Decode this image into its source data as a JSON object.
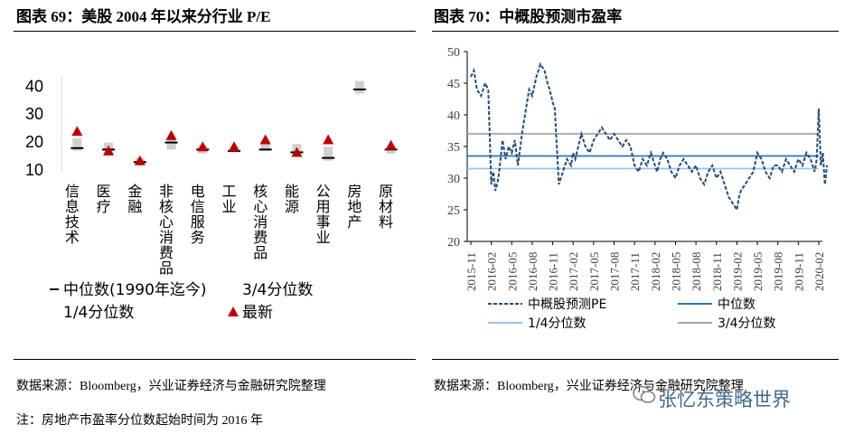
{
  "left_title": "图表 69：美股 2004 年以来分行业 P/E",
  "right_title": "图表 70：中概股预测市盈率",
  "source_left": "数据来源：Bloomberg，兴业证券经济与金融研究院整理",
  "source_right": "数据来源：Bloomberg，兴业证券经济与金融研究院整理",
  "note": "注：房地产市盈率分位数起始时间为 2016 年",
  "watermark": "张忆东策略世界",
  "watermark_icon": "wechat-icon",
  "chart_data": [
    {
      "type": "box",
      "title": "美股 2004 年以来分行业 P/E",
      "yticks": [
        10,
        20,
        30,
        40
      ],
      "ylim": [
        10,
        43
      ],
      "categories": [
        "信息技术",
        "医疗",
        "金融",
        "非核心消费品",
        "电信服务",
        "工业",
        "核心消费品",
        "能源",
        "公用事业",
        "房地产",
        "原材料"
      ],
      "q1": [
        16.5,
        15.5,
        12.0,
        17.0,
        15.5,
        16.0,
        16.5,
        14.5,
        13.0,
        37.0,
        15.5
      ],
      "q3": [
        21.0,
        19.5,
        14.0,
        21.0,
        18.5,
        18.0,
        20.0,
        19.0,
        18.0,
        41.5,
        18.5
      ],
      "median": [
        17.5,
        17.0,
        12.5,
        19.5,
        17.0,
        16.5,
        17.0,
        16.0,
        14.0,
        38.5,
        17.0
      ],
      "latest": [
        23.5,
        16.5,
        13.0,
        22.0,
        18.0,
        18.0,
        20.5,
        16.0,
        20.5,
        null,
        18.5
      ],
      "legend": [
        "中位数(1990年迄今)",
        "3/4分位数",
        "1/4分位数",
        "最新"
      ],
      "colors": {
        "box": "#d0d0d0",
        "median": "#000000",
        "latest": "#c00000"
      }
    },
    {
      "type": "line",
      "title": "中概股预测市盈率",
      "ylim": [
        20,
        50
      ],
      "yticks": [
        20,
        25,
        30,
        35,
        40,
        45,
        50
      ],
      "xlabels": [
        "2015-11",
        "2016-02",
        "2016-05",
        "2016-08",
        "2016-11",
        "2017-02",
        "2017-05",
        "2017-08",
        "2017-11",
        "2018-02",
        "2018-05",
        "2018-08",
        "2018-11",
        "2019-02",
        "2019-05",
        "2019-08",
        "2019-11",
        "2020-02"
      ],
      "series": [
        {
          "name": "中概股预测PE",
          "style": "dashed",
          "color": "#1f4e79",
          "x": [
            0,
            0.15,
            0.3,
            0.5,
            0.7,
            0.85,
            1.0,
            1.1,
            1.2,
            1.35,
            1.55,
            1.7,
            1.85,
            2.0,
            2.15,
            2.3,
            2.5,
            2.7,
            2.85,
            3.0,
            3.2,
            3.4,
            3.6,
            3.75,
            3.85,
            4.0,
            4.1,
            4.3,
            4.5,
            4.7,
            4.9,
            5.0,
            5.1,
            5.25,
            5.4,
            5.6,
            5.8,
            6.0,
            6.2,
            6.4,
            6.6,
            6.8,
            7.0,
            7.2,
            7.4,
            7.6,
            7.8,
            8.0,
            8.2,
            8.4,
            8.6,
            8.8,
            9.0,
            9.1,
            9.25,
            9.4,
            9.6,
            9.8,
            10.0,
            10.2,
            10.4,
            10.6,
            10.8,
            11.0,
            11.2,
            11.4,
            11.6,
            11.8,
            12.0,
            12.2,
            12.4,
            12.6,
            12.8,
            13.0,
            13.1,
            13.2,
            13.4,
            13.6,
            13.8,
            14.0,
            14.2,
            14.4,
            14.6,
            14.8,
            15.0,
            15.2,
            15.4,
            15.6,
            15.8,
            16.0,
            16.2,
            16.4,
            16.6,
            16.8,
            16.9,
            17.0,
            17.1,
            17.2,
            17.3,
            17.4
          ],
          "y": [
            46,
            47,
            44,
            43,
            45,
            44,
            29,
            31,
            28,
            30,
            36,
            33,
            35,
            34,
            36,
            32,
            37,
            41,
            44,
            43,
            46,
            48,
            47,
            45,
            44,
            42,
            41,
            29,
            31,
            33,
            32,
            34,
            33,
            35,
            37,
            35,
            34,
            36,
            37,
            38,
            37,
            36,
            37,
            36,
            35,
            36,
            35,
            32,
            31,
            33,
            32,
            34,
            32,
            31,
            33,
            34,
            33,
            31,
            30,
            32,
            33,
            32,
            31,
            32,
            30,
            29,
            31,
            32,
            30,
            31,
            29,
            27,
            26,
            25,
            27,
            28,
            29,
            30,
            31,
            34,
            33,
            31,
            30,
            32,
            32,
            31,
            33,
            32,
            31,
            33,
            32,
            34,
            33,
            31,
            33,
            41,
            32,
            34,
            29,
            32
          ]
        },
        {
          "name": "中位数",
          "style": "solid",
          "color": "#2e75b6",
          "value": 33.5
        },
        {
          "name": "1/4分位数",
          "style": "solid",
          "color": "#9dc3e6",
          "value": 31.5
        },
        {
          "name": "3/4分位数",
          "style": "solid",
          "color": "#a6a6a6",
          "value": 37.0
        }
      ],
      "legend": [
        "中概股预测PE",
        "中位数",
        "1/4分位数",
        "3/4分位数"
      ]
    }
  ]
}
